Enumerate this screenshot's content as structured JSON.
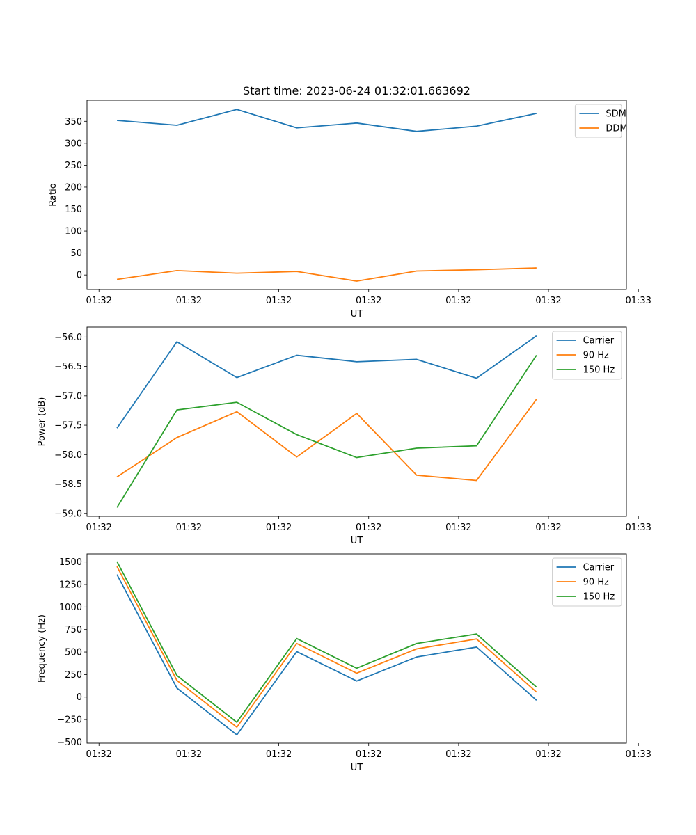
{
  "figure": {
    "title": "Start time: 2023-06-24 01:32:01.663692"
  },
  "chart_data": [
    {
      "type": "line",
      "xlabel": "UT",
      "ylabel": "Ratio",
      "x_tick_labels": [
        "01:32",
        "01:32",
        "01:32",
        "01:32",
        "01:32",
        "01:32",
        "01:33"
      ],
      "x": [
        1,
        2,
        3,
        4,
        5,
        6,
        7,
        8
      ],
      "xlim": [
        0.5,
        9.5
      ],
      "y_ticks": [
        0,
        50,
        100,
        150,
        200,
        250,
        300,
        350
      ],
      "ylim": [
        -33,
        398
      ],
      "legend_position": "upper right",
      "series": [
        {
          "name": "SDM",
          "color": "#1f77b4",
          "values": [
            352,
            341,
            377,
            335,
            346,
            327,
            339,
            368
          ]
        },
        {
          "name": "DDM",
          "color": "#ff7f0e",
          "values": [
            -10,
            10,
            4,
            8,
            -14,
            9,
            12,
            16
          ]
        }
      ]
    },
    {
      "type": "line",
      "xlabel": "UT",
      "ylabel": "Power (dB)",
      "x_tick_labels": [
        "01:32",
        "01:32",
        "01:32",
        "01:32",
        "01:32",
        "01:32",
        "01:33"
      ],
      "x": [
        1,
        2,
        3,
        4,
        5,
        6,
        7,
        8
      ],
      "xlim": [
        0.5,
        9.5
      ],
      "y_ticks": [
        -59.0,
        -58.5,
        -58.0,
        -57.5,
        -57.0,
        -56.5,
        -56.0
      ],
      "y_tick_labels": [
        "−59.0",
        "−58.5",
        "−58.0",
        "−57.5",
        "−57.0",
        "−56.5",
        "−56.0"
      ],
      "ylim": [
        -59.05,
        -55.83
      ],
      "legend_position": "upper right",
      "series": [
        {
          "name": "Carrier",
          "color": "#1f77b4",
          "values": [
            -57.55,
            -56.08,
            -56.69,
            -56.31,
            -56.42,
            -56.38,
            -56.7,
            -55.98
          ]
        },
        {
          "name": "90 Hz",
          "color": "#ff7f0e",
          "values": [
            -58.38,
            -57.71,
            -57.27,
            -58.04,
            -57.3,
            -58.35,
            -58.44,
            -57.06
          ]
        },
        {
          "name": "150 Hz",
          "color": "#2ca02c",
          "values": [
            -58.9,
            -57.24,
            -57.11,
            -57.66,
            -58.05,
            -57.89,
            -57.85,
            -56.31
          ]
        }
      ]
    },
    {
      "type": "line",
      "xlabel": "UT",
      "ylabel": "Frequency (Hz)",
      "x_tick_labels": [
        "01:32",
        "01:32",
        "01:32",
        "01:32",
        "01:32",
        "01:32",
        "01:33"
      ],
      "x": [
        1,
        2,
        3,
        4,
        5,
        6,
        7,
        8
      ],
      "xlim": [
        0.5,
        9.5
      ],
      "y_ticks": [
        -500,
        -250,
        0,
        250,
        500,
        750,
        1000,
        1250,
        1500
      ],
      "y_tick_labels": [
        "−500",
        "−250",
        "0",
        "250",
        "500",
        "750",
        "1000",
        "1250",
        "1500"
      ],
      "ylim": [
        -512,
        1590
      ],
      "legend_position": "upper right",
      "series": [
        {
          "name": "Carrier",
          "color": "#1f77b4",
          "values": [
            1360,
            100,
            -420,
            505,
            178,
            445,
            555,
            -35
          ]
        },
        {
          "name": "90 Hz",
          "color": "#ff7f0e",
          "values": [
            1450,
            185,
            -335,
            595,
            265,
            535,
            645,
            55
          ]
        },
        {
          "name": "150 Hz",
          "color": "#2ca02c",
          "values": [
            1505,
            240,
            -280,
            650,
            320,
            595,
            700,
            110
          ]
        }
      ]
    }
  ]
}
